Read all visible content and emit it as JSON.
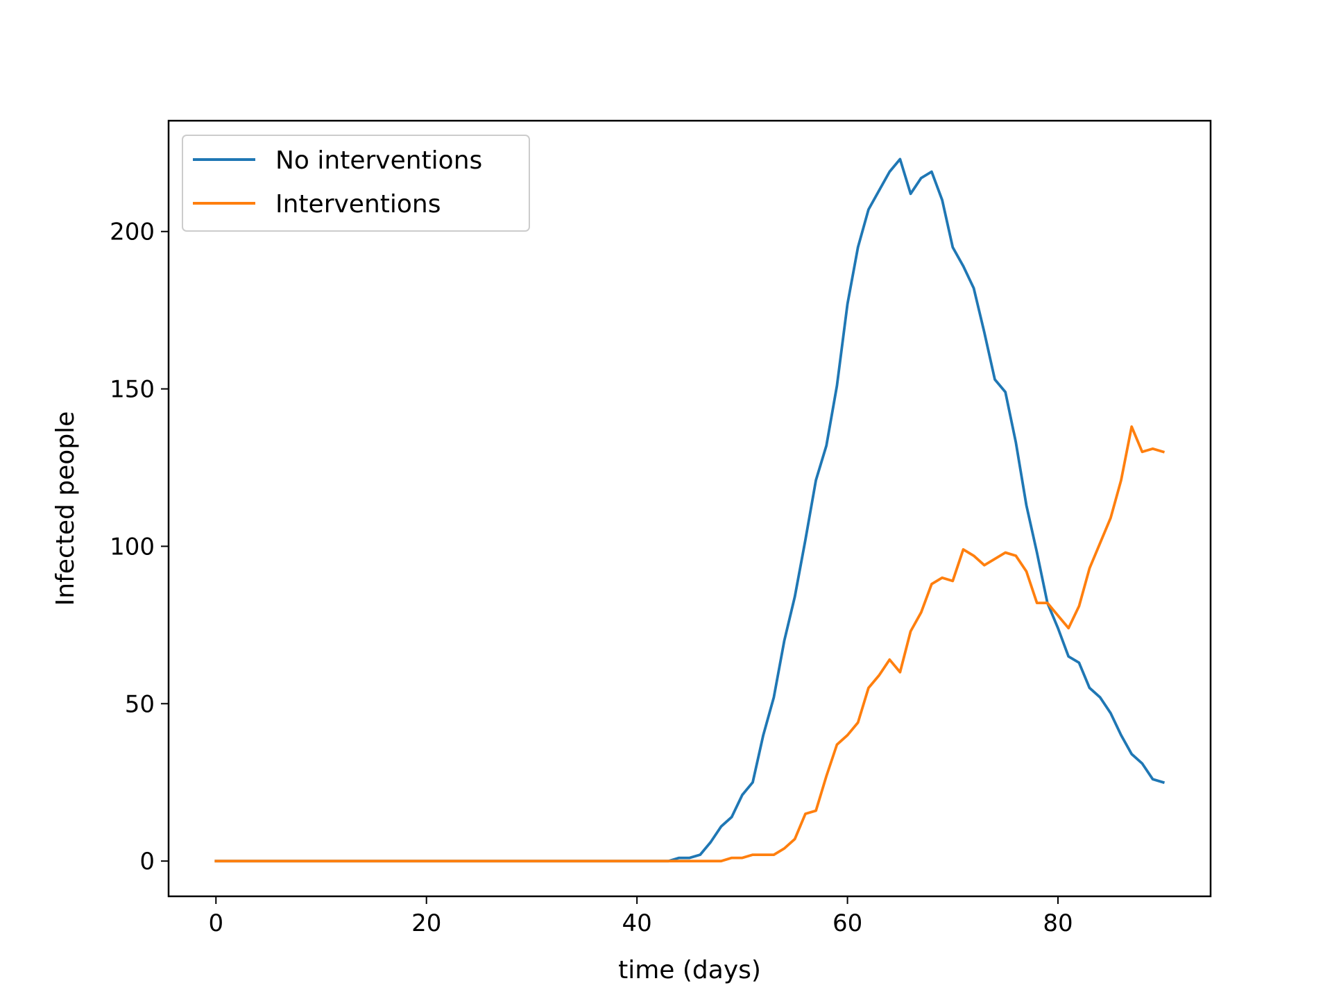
{
  "chart_data": {
    "type": "line",
    "title": "",
    "xlabel": "time (days)",
    "ylabel": "Infected people",
    "xlim": [
      -4.5,
      94.5
    ],
    "ylim": [
      -11.2,
      235.2
    ],
    "xticks": [
      0,
      20,
      40,
      60,
      80
    ],
    "yticks": [
      0,
      50,
      100,
      150,
      200
    ],
    "grid": false,
    "legend_position": "upper-left",
    "x": [
      0,
      1,
      2,
      3,
      4,
      5,
      6,
      7,
      8,
      9,
      10,
      11,
      12,
      13,
      14,
      15,
      16,
      17,
      18,
      19,
      20,
      21,
      22,
      23,
      24,
      25,
      26,
      27,
      28,
      29,
      30,
      31,
      32,
      33,
      34,
      35,
      36,
      37,
      38,
      39,
      40,
      41,
      42,
      43,
      44,
      45,
      46,
      47,
      48,
      49,
      50,
      51,
      52,
      53,
      54,
      55,
      56,
      57,
      58,
      59,
      60,
      61,
      62,
      63,
      64,
      65,
      66,
      67,
      68,
      69,
      70,
      71,
      72,
      73,
      74,
      75,
      76,
      77,
      78,
      79,
      80,
      81,
      82,
      83,
      84,
      85,
      86,
      87,
      88,
      89,
      90
    ],
    "series": [
      {
        "name": "No interventions",
        "color": "#1f77b4",
        "values": [
          0,
          0,
          0,
          0,
          0,
          0,
          0,
          0,
          0,
          0,
          0,
          0,
          0,
          0,
          0,
          0,
          0,
          0,
          0,
          0,
          0,
          0,
          0,
          0,
          0,
          0,
          0,
          0,
          0,
          0,
          0,
          0,
          0,
          0,
          0,
          0,
          0,
          0,
          0,
          0,
          0,
          0,
          0,
          0,
          1,
          1,
          2,
          6,
          11,
          14,
          21,
          25,
          40,
          52,
          70,
          84,
          102,
          121,
          132,
          151,
          177,
          195,
          207,
          213,
          219,
          223,
          212,
          217,
          219,
          210,
          195,
          189,
          182,
          168,
          153,
          149,
          133,
          113,
          98,
          82,
          74,
          65,
          63,
          55,
          52,
          47,
          40,
          34,
          31,
          26,
          25
        ]
      },
      {
        "name": "Interventions",
        "color": "#ff7f0e",
        "values": [
          0,
          0,
          0,
          0,
          0,
          0,
          0,
          0,
          0,
          0,
          0,
          0,
          0,
          0,
          0,
          0,
          0,
          0,
          0,
          0,
          0,
          0,
          0,
          0,
          0,
          0,
          0,
          0,
          0,
          0,
          0,
          0,
          0,
          0,
          0,
          0,
          0,
          0,
          0,
          0,
          0,
          0,
          0,
          0,
          0,
          0,
          0,
          0,
          0,
          1,
          1,
          2,
          2,
          2,
          4,
          7,
          15,
          16,
          27,
          37,
          40,
          44,
          55,
          59,
          64,
          60,
          73,
          79,
          88,
          90,
          89,
          99,
          97,
          94,
          96,
          98,
          97,
          92,
          82,
          82,
          78,
          74,
          81,
          93,
          101,
          109,
          121,
          138,
          130,
          131,
          130
        ]
      }
    ]
  }
}
